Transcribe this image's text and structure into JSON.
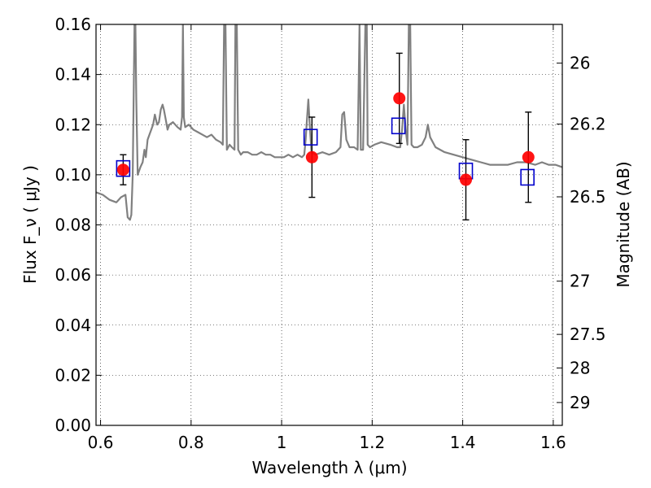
{
  "chart_data": {
    "type": "scatter",
    "xlabel": "Wavelength  λ (μm)",
    "ylabel": "Flux  F_ν  ( μJy )",
    "y2label": "Magnitude (AB)",
    "xlim": [
      0.59,
      1.62
    ],
    "ylim": [
      0.0,
      0.16
    ],
    "grid": true,
    "x_ticks": [
      {
        "value": 0.6,
        "label": "0.6"
      },
      {
        "value": 0.8,
        "label": "0.8"
      },
      {
        "value": 1.0,
        "label": "1"
      },
      {
        "value": 1.2,
        "label": "1.2"
      },
      {
        "value": 1.4,
        "label": "1.4"
      },
      {
        "value": 1.6,
        "label": "1.6"
      }
    ],
    "y_ticks": [
      {
        "value": 0.0,
        "label": "0.00"
      },
      {
        "value": 0.02,
        "label": "0.02"
      },
      {
        "value": 0.04,
        "label": "0.04"
      },
      {
        "value": 0.06,
        "label": "0.06"
      },
      {
        "value": 0.08,
        "label": "0.08"
      },
      {
        "value": 0.1,
        "label": "0.10"
      },
      {
        "value": 0.12,
        "label": "0.12"
      },
      {
        "value": 0.14,
        "label": "0.14"
      },
      {
        "value": 0.16,
        "label": "0.16"
      }
    ],
    "y2_ticks": [
      {
        "mag": 26,
        "label": "26"
      },
      {
        "mag": 26.2,
        "label": "26.2"
      },
      {
        "mag": 26.5,
        "label": "26.5"
      },
      {
        "mag": 27,
        "label": "27"
      },
      {
        "mag": 27.5,
        "label": "27.5"
      },
      {
        "mag": 28,
        "label": "28"
      },
      {
        "mag": 29,
        "label": "29"
      }
    ],
    "series": [
      {
        "type": "line",
        "color": "#808080",
        "points": [
          [
            0.59,
            0.093
          ],
          [
            0.605,
            0.092
          ],
          [
            0.62,
            0.09
          ],
          [
            0.635,
            0.089
          ],
          [
            0.645,
            0.091
          ],
          [
            0.655,
            0.092
          ],
          [
            0.66,
            0.083
          ],
          [
            0.665,
            0.082
          ],
          [
            0.668,
            0.084
          ],
          [
            0.671,
            0.1
          ],
          [
            0.673,
            0.13
          ],
          [
            0.675,
            0.16
          ],
          [
            0.677,
            0.16
          ],
          [
            0.679,
            0.13
          ],
          [
            0.682,
            0.1
          ],
          [
            0.688,
            0.103
          ],
          [
            0.693,
            0.105
          ],
          [
            0.697,
            0.11
          ],
          [
            0.7,
            0.107
          ],
          [
            0.704,
            0.114
          ],
          [
            0.708,
            0.116
          ],
          [
            0.712,
            0.118
          ],
          [
            0.716,
            0.12
          ],
          [
            0.72,
            0.124
          ],
          [
            0.725,
            0.12
          ],
          [
            0.729,
            0.121
          ],
          [
            0.733,
            0.126
          ],
          [
            0.737,
            0.128
          ],
          [
            0.74,
            0.126
          ],
          [
            0.744,
            0.122
          ],
          [
            0.748,
            0.118
          ],
          [
            0.752,
            0.12
          ],
          [
            0.76,
            0.121
          ],
          [
            0.77,
            0.119
          ],
          [
            0.777,
            0.118
          ],
          [
            0.78,
            0.123
          ],
          [
            0.782,
            0.16
          ],
          [
            0.784,
            0.123
          ],
          [
            0.787,
            0.119
          ],
          [
            0.795,
            0.12
          ],
          [
            0.805,
            0.118
          ],
          [
            0.815,
            0.117
          ],
          [
            0.825,
            0.116
          ],
          [
            0.835,
            0.115
          ],
          [
            0.845,
            0.116
          ],
          [
            0.855,
            0.114
          ],
          [
            0.865,
            0.113
          ],
          [
            0.87,
            0.112
          ],
          [
            0.873,
            0.16
          ],
          [
            0.876,
            0.16
          ],
          [
            0.879,
            0.11
          ],
          [
            0.885,
            0.112
          ],
          [
            0.89,
            0.111
          ],
          [
            0.896,
            0.11
          ],
          [
            0.898,
            0.16
          ],
          [
            0.901,
            0.16
          ],
          [
            0.904,
            0.11
          ],
          [
            0.91,
            0.108
          ],
          [
            0.915,
            0.109
          ],
          [
            0.925,
            0.109
          ],
          [
            0.935,
            0.108
          ],
          [
            0.945,
            0.108
          ],
          [
            0.955,
            0.109
          ],
          [
            0.965,
            0.108
          ],
          [
            0.975,
            0.108
          ],
          [
            0.985,
            0.107
          ],
          [
            0.995,
            0.107
          ],
          [
            1.005,
            0.107
          ],
          [
            1.015,
            0.108
          ],
          [
            1.025,
            0.107
          ],
          [
            1.035,
            0.108
          ],
          [
            1.045,
            0.107
          ],
          [
            1.05,
            0.108
          ],
          [
            1.053,
            0.114
          ],
          [
            1.056,
            0.122
          ],
          [
            1.059,
            0.13
          ],
          [
            1.062,
            0.12
          ],
          [
            1.066,
            0.109
          ],
          [
            1.075,
            0.108
          ],
          [
            1.09,
            0.109
          ],
          [
            1.105,
            0.108
          ],
          [
            1.12,
            0.109
          ],
          [
            1.13,
            0.111
          ],
          [
            1.134,
            0.124
          ],
          [
            1.138,
            0.125
          ],
          [
            1.143,
            0.114
          ],
          [
            1.15,
            0.111
          ],
          [
            1.16,
            0.111
          ],
          [
            1.168,
            0.11
          ],
          [
            1.17,
            0.135
          ],
          [
            1.172,
            0.16
          ],
          [
            1.175,
            0.11
          ],
          [
            1.18,
            0.11
          ],
          [
            1.185,
            0.16
          ],
          [
            1.188,
            0.16
          ],
          [
            1.19,
            0.112
          ],
          [
            1.195,
            0.111
          ],
          [
            1.205,
            0.112
          ],
          [
            1.22,
            0.113
          ],
          [
            1.24,
            0.112
          ],
          [
            1.255,
            0.111
          ],
          [
            1.262,
            0.111
          ],
          [
            1.266,
            0.118
          ],
          [
            1.27,
            0.128
          ],
          [
            1.274,
            0.118
          ],
          [
            1.278,
            0.112
          ],
          [
            1.281,
            0.16
          ],
          [
            1.284,
            0.16
          ],
          [
            1.287,
            0.112
          ],
          [
            1.292,
            0.111
          ],
          [
            1.3,
            0.111
          ],
          [
            1.31,
            0.112
          ],
          [
            1.318,
            0.115
          ],
          [
            1.323,
            0.12
          ],
          [
            1.328,
            0.115
          ],
          [
            1.34,
            0.111
          ],
          [
            1.36,
            0.109
          ],
          [
            1.38,
            0.108
          ],
          [
            1.4,
            0.107
          ],
          [
            1.42,
            0.106
          ],
          [
            1.44,
            0.105
          ],
          [
            1.46,
            0.104
          ],
          [
            1.48,
            0.104
          ],
          [
            1.5,
            0.104
          ],
          [
            1.52,
            0.105
          ],
          [
            1.54,
            0.105
          ],
          [
            1.56,
            0.104
          ],
          [
            1.575,
            0.105
          ],
          [
            1.59,
            0.104
          ],
          [
            1.605,
            0.104
          ],
          [
            1.62,
            0.103
          ]
        ]
      },
      {
        "type": "scatter",
        "marker": "square",
        "color": "#0000cc",
        "points": [
          [
            0.65,
            0.1025
          ],
          [
            1.064,
            0.115
          ],
          [
            1.258,
            0.1195
          ],
          [
            1.407,
            0.1015
          ],
          [
            1.543,
            0.099
          ]
        ]
      },
      {
        "type": "scatter",
        "marker": "circle",
        "color": "#ff0000",
        "points": [
          {
            "x": 0.65,
            "y": 0.102,
            "err": 0.006
          },
          {
            "x": 1.067,
            "y": 0.107,
            "err": 0.016
          },
          {
            "x": 1.26,
            "y": 0.1305,
            "err": 0.018
          },
          {
            "x": 1.407,
            "y": 0.098,
            "err": 0.016
          },
          {
            "x": 1.545,
            "y": 0.107,
            "err": 0.018
          }
        ]
      }
    ]
  }
}
